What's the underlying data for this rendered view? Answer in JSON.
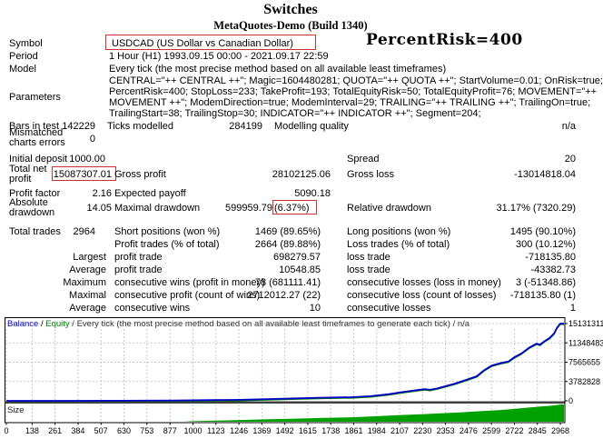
{
  "header": {
    "title": "Switches",
    "subtitle": "MetaQuotes-Demo (Build 1340)",
    "annotation": "PercentRisk=400"
  },
  "info": {
    "symbol_label": "Symbol",
    "symbol_value": "USDCAD (US Dollar vs Canadian Dollar)",
    "period_label": "Period",
    "period_value": "1 Hour (H1) 1993.09.15 00:00 - 2021.09.17 22:59",
    "model_label": "Model",
    "model_value": "Every tick (the most precise method based on all available least timeframes)",
    "parameters_label": "Parameters",
    "parameters_lines": [
      "CENTRAL=\"++ CENTRAL ++\"; Magic=1604480281; QUOTA=\"++ QUOTA ++\"; StartVolume=0.01; OnRisk=true;",
      "PercentRisk=400; StopLoss=233; TakeProfit=193; TotalEquityRisk=50; TotalEquityProfit=76; MOVEMENT=\"++",
      "MOVEMENT ++\"; ModemDirection=true; ModemInterval=29; TRAILING=\"++ TRAILING ++\"; TrailingOn=true;",
      "TrailingStart=38; TrailingStop=30; INDICATOR=\"++ INDICATOR ++\"; Segment=204;"
    ]
  },
  "stats": {
    "bars_label": "Bars in test",
    "bars_value": "142229",
    "ticks_label": "Ticks modelled",
    "ticks_value": "284199",
    "quality_label": "Modelling quality",
    "quality_value": "n/a",
    "mismatch_label": "Mismatched charts errors",
    "mismatch_value": "0",
    "deposit_label": "Initial deposit",
    "deposit_value": "1000.00",
    "spread_label": "Spread",
    "spread_value": "20",
    "netprofit_label": "Total net profit",
    "netprofit_value": "15087307.01",
    "grossprofit_label": "Gross profit",
    "grossprofit_value": "28102125.06",
    "grossloss_label": "Gross loss",
    "grossloss_value": "-13014818.04",
    "pf_label": "Profit factor",
    "pf_value": "2.16",
    "payoff_label": "Expected payoff",
    "payoff_value": "5090.18",
    "absdd_label": "Absolute drawdown",
    "absdd_value": "14.05",
    "maxdd_label": "Maximal drawdown",
    "maxdd_value": "599959.79",
    "maxdd_pct": "(6.37%)",
    "reldd_label": "Relative drawdown",
    "reldd_value": "31.17% (7320.29)",
    "trades_label": "Total trades",
    "trades_value": "2964",
    "short_label": "Short positions (won %)",
    "short_value": "1469 (89.65%)",
    "long_label": "Long positions (won %)",
    "long_value": "1495 (90.10%)",
    "profittrades_label": "Profit trades (% of total)",
    "profittrades_value": "2664 (89.88%)",
    "losstrades_label": "Loss trades (% of total)",
    "losstrades_value": "300 (10.12%)",
    "largest_label": "Largest",
    "largest_profit_label": "profit trade",
    "largest_profit_value": "698279.57",
    "largest_loss_label": "loss trade",
    "largest_loss_value": "-718135.80",
    "average_label": "Average",
    "average_profit_label": "profit trade",
    "average_profit_value": "10548.85",
    "average_loss_label": "loss trade",
    "average_loss_value": "-43382.73",
    "maximum_label": "Maximum",
    "maxwins_label": "consecutive wins (profit in money)",
    "maxwins_value": "78 (681111.41)",
    "maxlosses_label": "consecutive losses (loss in money)",
    "maxlosses_value": "3 (-51348.86)",
    "maximal_label": "Maximal",
    "maxprofit_label": "consecutive profit (count of wins)",
    "maxprofit_value": "2712012.27 (22)",
    "maxloss_label": "consecutive loss (count of losses)",
    "maxloss_value": "-718135.80 (1)",
    "avg2_label": "Average",
    "avgwins_label": "consecutive wins",
    "avgwins_value": "10",
    "avglosses_label": "consecutive losses",
    "avglosses_value": "1"
  },
  "colors": {
    "highlight_box": "#CC3333",
    "balance_line": "#0000C8",
    "equity_line": "#008000",
    "size_fill": "#00A000",
    "grid": "#C8C8C8"
  },
  "chart_data": {
    "type": "line",
    "legend": {
      "balance": "Balance",
      "equity": "Equity",
      "description": "Every tick (the most precise method based on all available least timeframes to generate each tick)",
      "na": "n/a"
    },
    "size_panel_label": "Size",
    "xlabel": "",
    "ylabel": "",
    "x_max": 2968,
    "y_max": 15131311,
    "x_ticks": [
      0,
      138,
      261,
      384,
      507,
      630,
      753,
      877,
      1000,
      1123,
      1246,
      1369,
      1492,
      1615,
      1738,
      1861,
      1984,
      2107,
      2230,
      2353,
      2476,
      2599,
      2722,
      2845,
      2968
    ],
    "y_ticks": [
      0,
      3782828,
      7565655,
      11348483,
      15131311
    ],
    "series": [
      {
        "name": "Balance",
        "points": [
          [
            0,
            0
          ],
          [
            300,
            5000
          ],
          [
            600,
            20000
          ],
          [
            900,
            60000
          ],
          [
            1100,
            140000
          ],
          [
            1250,
            200000
          ],
          [
            1400,
            330000
          ],
          [
            1550,
            480000
          ],
          [
            1700,
            620000
          ],
          [
            1850,
            720000
          ],
          [
            1950,
            900000
          ],
          [
            2050,
            1300000
          ],
          [
            2100,
            1600000
          ],
          [
            2170,
            1950000
          ],
          [
            2240,
            2300000
          ],
          [
            2270,
            2150000
          ],
          [
            2310,
            2450000
          ],
          [
            2400,
            3350000
          ],
          [
            2460,
            4050000
          ],
          [
            2520,
            4800000
          ],
          [
            2560,
            6000000
          ],
          [
            2600,
            6900000
          ],
          [
            2650,
            7400000
          ],
          [
            2690,
            7700000
          ],
          [
            2720,
            8500000
          ],
          [
            2760,
            9300000
          ],
          [
            2800,
            10400000
          ],
          [
            2840,
            11200000
          ],
          [
            2860,
            11000000
          ],
          [
            2880,
            11600000
          ],
          [
            2910,
            12300000
          ],
          [
            2935,
            13200000
          ],
          [
            2950,
            14300000
          ],
          [
            2960,
            14800000
          ],
          [
            2968,
            15131311
          ]
        ]
      }
    ],
    "size_series_pct": [
      [
        0,
        0
      ],
      [
        950,
        0
      ],
      [
        1000,
        3
      ],
      [
        1100,
        6
      ],
      [
        1250,
        10
      ],
      [
        1400,
        14
      ],
      [
        1550,
        18
      ],
      [
        1700,
        22
      ],
      [
        1850,
        26
      ],
      [
        1950,
        30
      ],
      [
        2100,
        38
      ],
      [
        2240,
        44
      ],
      [
        2350,
        50
      ],
      [
        2450,
        55
      ],
      [
        2550,
        62
      ],
      [
        2650,
        68
      ],
      [
        2720,
        74
      ],
      [
        2800,
        82
      ],
      [
        2860,
        88
      ],
      [
        2910,
        92
      ],
      [
        2950,
        97
      ],
      [
        2968,
        100
      ]
    ]
  }
}
